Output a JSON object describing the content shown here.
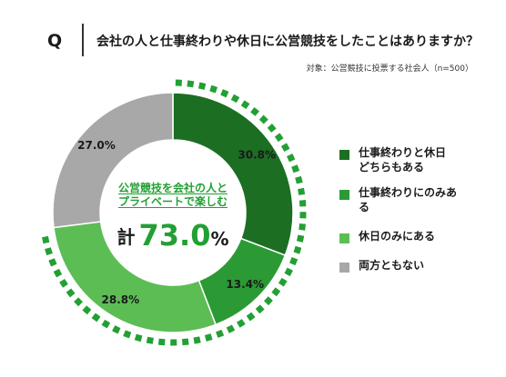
{
  "question": {
    "mark": "Q",
    "text": "会社の人と仕事終わりや休日に公営競技をしたことはありますか？",
    "sub": "対象：公営競技に投票する社会人（n=500）"
  },
  "center": {
    "line1": "公営競技を会社の人と",
    "line2": "プライベートで楽しむ",
    "kei": "計",
    "total": "73.0",
    "percent_sign": "%"
  },
  "colors": {
    "dark_green": "#1c6e23",
    "mid_green": "#2b9a35",
    "light_green": "#5cbd55",
    "gray": "#a8a8a8",
    "accent": "#22a033"
  },
  "chart_data": {
    "type": "donut",
    "slices": [
      {
        "label": "仕事終わりと休日どちらもある",
        "value": 30.8,
        "label_text": "30.8%",
        "color": "#1c6e23"
      },
      {
        "label": "仕事終わりにのみある",
        "value": 13.4,
        "label_text": "13.4%",
        "color": "#2b9a35"
      },
      {
        "label": "休日のみにある",
        "value": 28.8,
        "label_text": "28.8%",
        "color": "#5cbd55"
      },
      {
        "label": "両方ともない",
        "value": 27.0,
        "label_text": "27.0%",
        "color": "#a8a8a8"
      }
    ],
    "highlight_total": 73.0
  },
  "legend": [
    {
      "line1": "仕事終わりと休日",
      "line2": "どちらもある"
    },
    {
      "line1": "仕事終わりにのみある",
      "line2": ""
    },
    {
      "line1": "休日のみにある",
      "line2": ""
    },
    {
      "line1": "両方ともない",
      "line2": ""
    }
  ]
}
